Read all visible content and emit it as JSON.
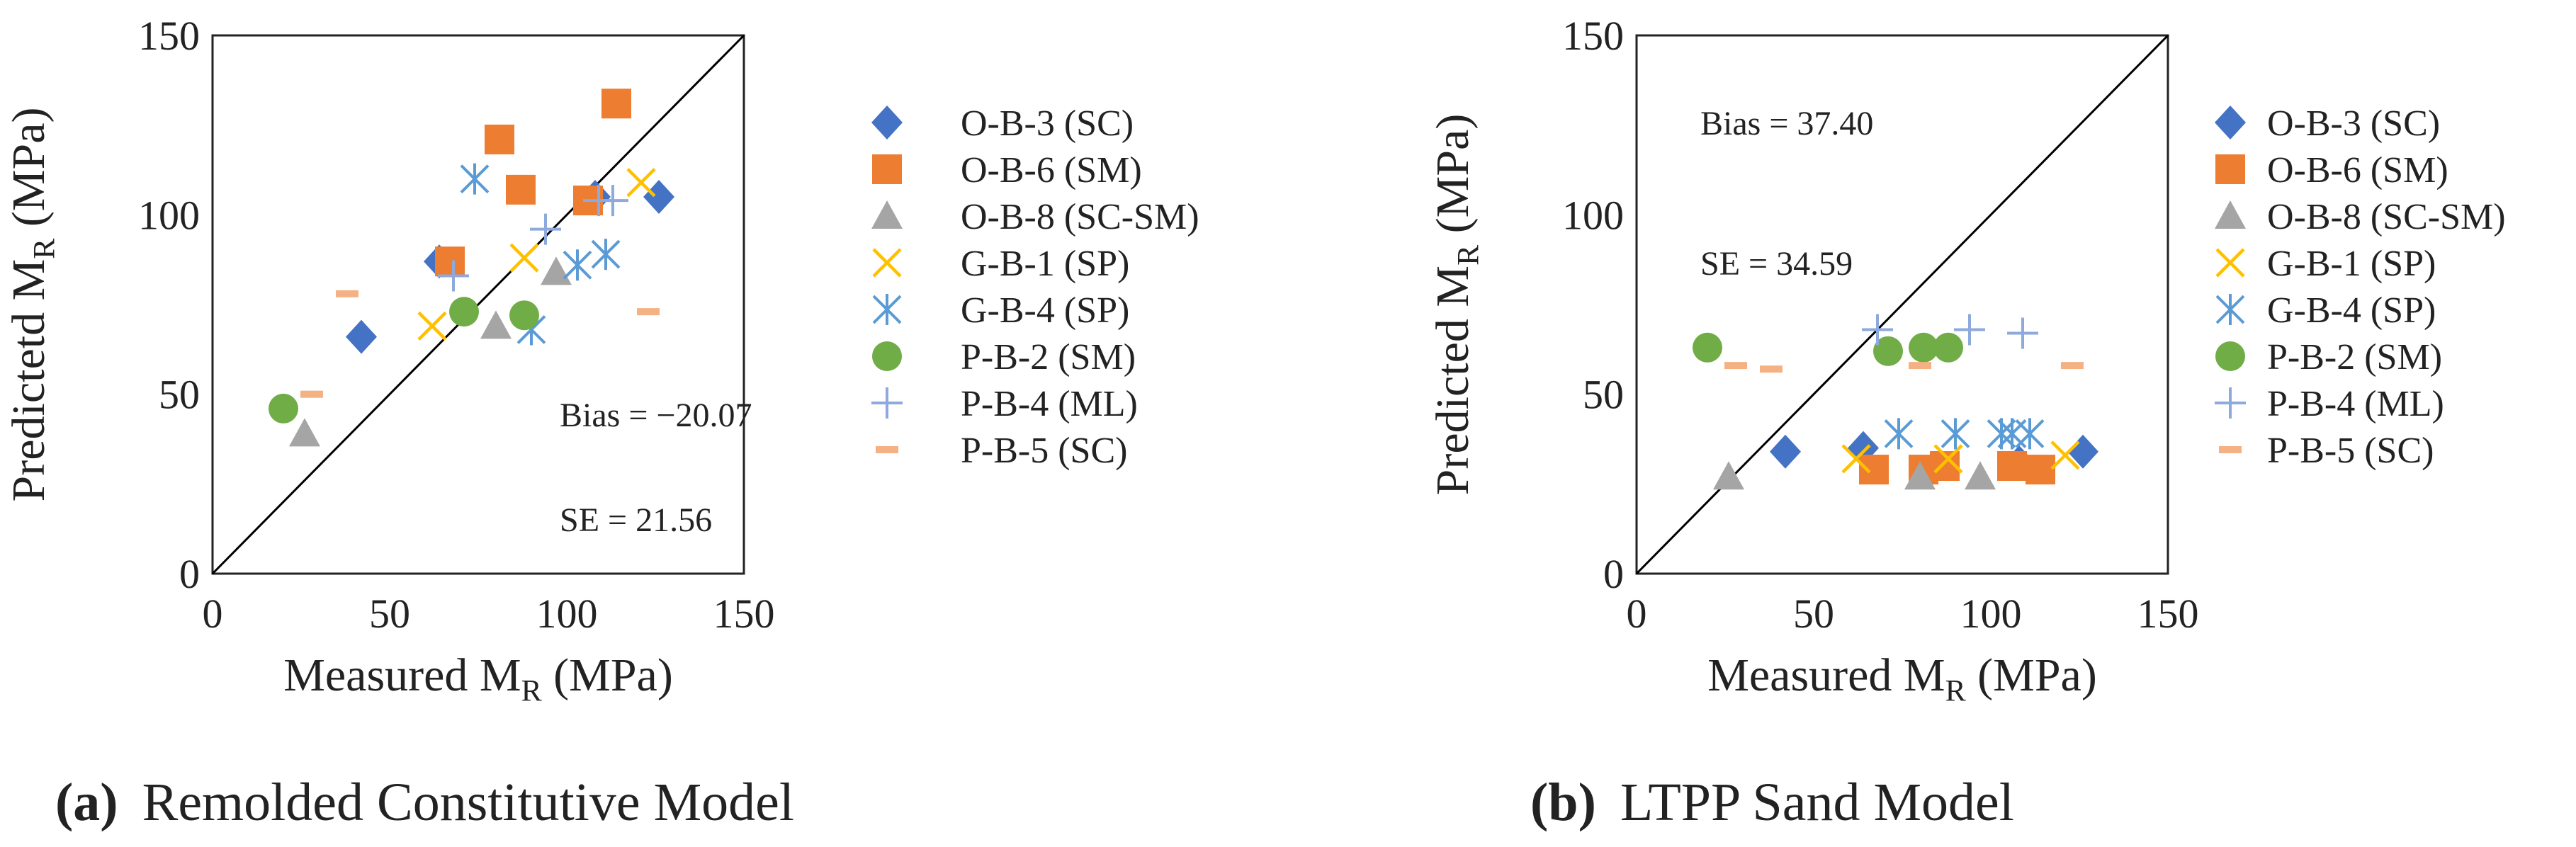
{
  "chart_data": [
    {
      "type": "scatter",
      "panel": "a",
      "title": "Remolded Constitutive Model",
      "xlabel": "Measured M_R (MPa)",
      "ylabel": "Predictetd M_R (MPa)",
      "xlim": [
        0,
        150
      ],
      "ylim": [
        0,
        150
      ],
      "xticks": [
        "0",
        "50",
        "100",
        "150"
      ],
      "yticks": [
        "0",
        "50",
        "100",
        "150"
      ],
      "grid": false,
      "legend_position": "right-outside",
      "reference_line": "1:1 line",
      "annotations": {
        "bias": "Bias = −20.07",
        "se": "SE = 21.56"
      },
      "series": [
        {
          "name": "O-B-3 (SC)",
          "marker": "diamond",
          "color": "#4472C4",
          "points": [
            [
              42,
              66
            ],
            [
              64,
              87
            ],
            [
              108,
              105
            ],
            [
              126,
              105
            ]
          ]
        },
        {
          "name": "O-B-6 (SM)",
          "marker": "square",
          "color": "#ED7D31",
          "points": [
            [
              67,
              87
            ],
            [
              81,
              121
            ],
            [
              87,
              107
            ],
            [
              106,
              104
            ],
            [
              114,
              131
            ]
          ]
        },
        {
          "name": "O-B-8 (SC-SM)",
          "marker": "triangle",
          "color": "#A5A5A5",
          "points": [
            [
              26,
              39
            ],
            [
              80,
              69
            ],
            [
              97,
              84
            ]
          ]
        },
        {
          "name": "G-B-1 (SP)",
          "marker": "x",
          "color": "#FFC000",
          "points": [
            [
              62,
              69
            ],
            [
              88,
              88
            ],
            [
              121,
              109
            ]
          ]
        },
        {
          "name": "G-B-4 (SP)",
          "marker": "asterisk",
          "color": "#5B9BD5",
          "points": [
            [
              74,
              110
            ],
            [
              90,
              68
            ],
            [
              103,
              86
            ],
            [
              111,
              89
            ]
          ]
        },
        {
          "name": "P-B-2 (SM)",
          "marker": "circle",
          "color": "#70AD47",
          "points": [
            [
              20,
              46
            ],
            [
              71,
              73
            ],
            [
              88,
              72
            ]
          ]
        },
        {
          "name": "P-B-4 (ML)",
          "marker": "plus",
          "color": "#8EA9DB",
          "points": [
            [
              68,
              83
            ],
            [
              94,
              96
            ],
            [
              109,
              104
            ],
            [
              113,
              104
            ]
          ]
        },
        {
          "name": "P-B-5 (SC)",
          "marker": "dash",
          "color": "#F4B183",
          "points": [
            [
              28,
              50
            ],
            [
              38,
              78
            ],
            [
              123,
              73
            ]
          ]
        }
      ]
    },
    {
      "type": "scatter",
      "panel": "b",
      "title": "LTPP Sand Model",
      "xlabel": "Measured M_R (MPa)",
      "ylabel": "Predicted M_R (MPa)",
      "xlim": [
        0,
        150
      ],
      "ylim": [
        0,
        150
      ],
      "xticks": [
        "0",
        "50",
        "100",
        "150"
      ],
      "yticks": [
        "0",
        "50",
        "100",
        "150"
      ],
      "grid": false,
      "legend_position": "right-outside",
      "reference_line": "1:1 line",
      "annotations": {
        "bias": "Bias = 37.40",
        "se": "SE = 34.59"
      },
      "series": [
        {
          "name": "O-B-3 (SC)",
          "marker": "diamond",
          "color": "#4472C4",
          "points": [
            [
              42,
              34
            ],
            [
              64,
              35
            ],
            [
              108,
              31
            ],
            [
              126,
              34
            ]
          ]
        },
        {
          "name": "O-B-6 (SM)",
          "marker": "square",
          "color": "#ED7D31",
          "points": [
            [
              67,
              29
            ],
            [
              81,
              29
            ],
            [
              87,
              30
            ],
            [
              106,
              30
            ],
            [
              114,
              29
            ]
          ]
        },
        {
          "name": "O-B-8 (SC-SM)",
          "marker": "triangle",
          "color": "#A5A5A5",
          "points": [
            [
              26,
              27
            ],
            [
              80,
              27
            ],
            [
              97,
              27
            ]
          ]
        },
        {
          "name": "G-B-1 (SP)",
          "marker": "x",
          "color": "#FFC000",
          "points": [
            [
              62,
              32
            ],
            [
              88,
              32
            ],
            [
              121,
              33
            ]
          ]
        },
        {
          "name": "G-B-4 (SP)",
          "marker": "asterisk",
          "color": "#5B9BD5",
          "points": [
            [
              74,
              39
            ],
            [
              90,
              39
            ],
            [
              103,
              39
            ],
            [
              106,
              39
            ],
            [
              111,
              39
            ]
          ]
        },
        {
          "name": "P-B-2 (SM)",
          "marker": "circle",
          "color": "#70AD47",
          "points": [
            [
              20,
              63
            ],
            [
              71,
              62
            ],
            [
              81,
              63
            ],
            [
              88,
              63
            ]
          ]
        },
        {
          "name": "P-B-4 (ML)",
          "marker": "plus",
          "color": "#8EA9DB",
          "points": [
            [
              68,
              68
            ],
            [
              94,
              68
            ],
            [
              109,
              67
            ]
          ]
        },
        {
          "name": "P-B-5 (SC)",
          "marker": "dash",
          "color": "#F4B183",
          "points": [
            [
              28,
              58
            ],
            [
              38,
              57
            ],
            [
              80,
              58
            ],
            [
              123,
              58
            ]
          ]
        }
      ]
    }
  ],
  "captions": [
    {
      "label": "(a)",
      "text": "Remolded Constitutive Model"
    },
    {
      "label": "(b)",
      "text": "LTPP Sand Model"
    }
  ]
}
